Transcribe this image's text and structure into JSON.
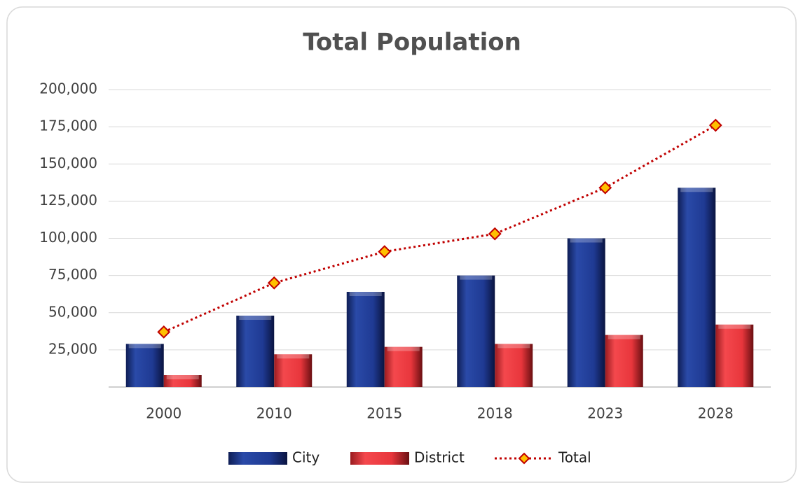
{
  "chart_data": {
    "type": "bar",
    "title": "Total Population",
    "categories": [
      "2000",
      "2010",
      "2015",
      "2018",
      "2023",
      "2028"
    ],
    "series": [
      {
        "name": "City",
        "type": "bar",
        "color": "#1f3a93",
        "values": [
          29000,
          48000,
          64000,
          75000,
          100000,
          134000
        ]
      },
      {
        "name": "District",
        "type": "bar",
        "color": "#e8363c",
        "values": [
          8000,
          22000,
          27000,
          29000,
          35000,
          42000
        ]
      },
      {
        "name": "Total",
        "type": "line",
        "color": "#c00000",
        "marker_color": "#ffc000",
        "values": [
          37000,
          70000,
          91000,
          103000,
          134000,
          176000
        ]
      }
    ],
    "ylim": [
      0,
      200000
    ],
    "yticks": [
      {
        "value": 25000,
        "label": "25,000"
      },
      {
        "value": 50000,
        "label": "50,000"
      },
      {
        "value": 75000,
        "label": "75,000"
      },
      {
        "value": 100000,
        "label": "100,000"
      },
      {
        "value": 125000,
        "label": "125,000"
      },
      {
        "value": 150000,
        "label": "150,000"
      },
      {
        "value": 175000,
        "label": "175,000"
      },
      {
        "value": 200000,
        "label": "200,000"
      }
    ],
    "grid": true,
    "legend": "bottom"
  }
}
